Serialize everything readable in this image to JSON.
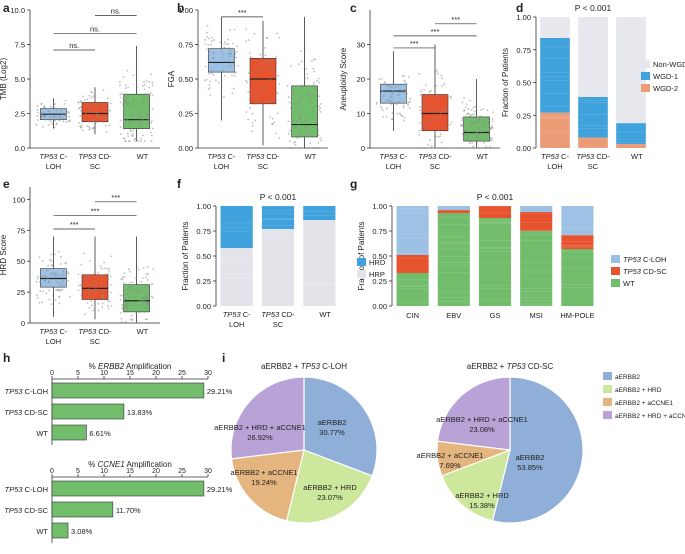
{
  "colors": {
    "c_loh": "#9cc1e4",
    "cd_sc": "#e8532f",
    "wt": "#72bd6c",
    "hrd": "#3fa2dc",
    "hrp": "#e3e4ea",
    "non_wgd": "#e6e8ee",
    "wgd1": "#3fa2dc",
    "wgd2": "#ec9b77",
    "pie_erbb2": "#8fafd8",
    "pie_hrd": "#cde79c",
    "pie_ccne1": "#e5b57f",
    "pie_hrd_ccne1": "#b9a2d6",
    "hbar": "#72bd6c",
    "jitter": "#888888"
  },
  "chart_data": [
    {
      "panel": "a",
      "type": "box",
      "ylabel": "TMB (Log2)",
      "ylim": [
        0,
        10
      ],
      "yticks": [
        "0.0",
        "2.5",
        "5.0",
        "7.5",
        "10.0"
      ],
      "categories": [
        [
          "TP53 C-",
          "LOH"
        ],
        [
          "TP53 CD-",
          "SC"
        ],
        [
          "WT",
          ""
        ]
      ],
      "boxes": [
        {
          "q1": 2.05,
          "med": 2.45,
          "q3": 2.85,
          "lo": 1.4,
          "hi": 3.6
        },
        {
          "q1": 1.9,
          "med": 2.5,
          "q3": 3.3,
          "lo": 1.0,
          "hi": 4.4
        },
        {
          "q1": 1.4,
          "med": 2.05,
          "q3": 3.9,
          "lo": 0.5,
          "hi": 7.4
        }
      ],
      "brackets": [
        {
          "from": 0,
          "to": 2,
          "label": "ns.",
          "y": 8.3
        },
        {
          "from": 1,
          "to": 2,
          "label": "ns.",
          "y": 9.6
        },
        {
          "from": 0,
          "to": 1,
          "label": "ns.",
          "y": 7.1
        }
      ]
    },
    {
      "panel": "b",
      "type": "box",
      "ylabel": "FGA",
      "ylim": [
        0,
        1
      ],
      "yticks": [
        "0.00",
        "0.25",
        "0.50",
        "0.75",
        "1.00"
      ],
      "categories": [
        [
          "TP53 C-",
          "LOH"
        ],
        [
          "TP53 CD-",
          "SC"
        ],
        [
          "WT",
          ""
        ]
      ],
      "boxes": [
        {
          "q1": 0.55,
          "med": 0.62,
          "q3": 0.72,
          "lo": 0.2,
          "hi": 0.95
        },
        {
          "q1": 0.32,
          "med": 0.5,
          "q3": 0.65,
          "lo": 0.02,
          "hi": 0.92
        },
        {
          "q1": 0.08,
          "med": 0.17,
          "q3": 0.45,
          "lo": 0.0,
          "hi": 0.95
        }
      ],
      "brackets": [
        {
          "from": 0,
          "to": 1,
          "label": "***",
          "y": 0.95
        },
        {
          "from": 0,
          "to": 2,
          "label": "***",
          "y": 1.08
        },
        {
          "from": 1,
          "to": 2,
          "label": "***",
          "y": 1.22
        }
      ]
    },
    {
      "panel": "c",
      "type": "box",
      "ylabel": "Aneuploidy Score",
      "ylim": [
        0,
        40
      ],
      "yticks": [
        "0",
        "10",
        "20",
        "30"
      ],
      "categories": [
        [
          "TP53 C-",
          "LOH"
        ],
        [
          "TP53 CD-",
          "SC"
        ],
        [
          "WT",
          ""
        ]
      ],
      "boxes": [
        {
          "q1": 13,
          "med": 16.5,
          "q3": 18.5,
          "lo": 5,
          "hi": 28
        },
        {
          "q1": 5,
          "med": 10,
          "q3": 15.5,
          "lo": 0,
          "hi": 30
        },
        {
          "q1": 2,
          "med": 4.5,
          "q3": 9,
          "lo": 0,
          "hi": 20
        }
      ],
      "brackets": [
        {
          "from": 0,
          "to": 1,
          "label": "***",
          "y": 29
        },
        {
          "from": 0,
          "to": 2,
          "label": "***",
          "y": 32.5
        },
        {
          "from": 1,
          "to": 2,
          "label": "***",
          "y": 36
        }
      ]
    },
    {
      "panel": "d",
      "type": "stacked_bar",
      "ylabel": "Fraction of Patients",
      "ylim": [
        0,
        1
      ],
      "yticks": [
        "0.00",
        "0.25",
        "0.50",
        "0.75",
        "1.00"
      ],
      "pvalue": "P < 0.001",
      "categories": [
        [
          "TP53 C-",
          "LOH"
        ],
        [
          "TP53 CD-",
          "SC"
        ],
        [
          "WT",
          ""
        ]
      ],
      "series": [
        {
          "name": "WGD-2",
          "values": [
            0.27,
            0.08,
            0.03
          ]
        },
        {
          "name": "WGD-1",
          "values": [
            0.57,
            0.31,
            0.16
          ]
        },
        {
          "name": "Non-WGD",
          "values": [
            0.16,
            0.61,
            0.81
          ]
        }
      ],
      "legend": [
        "Non-WGD",
        "WGD-1",
        "WGD-2"
      ]
    },
    {
      "panel": "e",
      "type": "box",
      "ylabel": "HRD Score",
      "ylim": [
        0,
        110
      ],
      "yticks": [
        "0",
        "25",
        "50",
        "75",
        "100"
      ],
      "categories": [
        [
          "TP53 C-",
          "LOH"
        ],
        [
          "TP53 CD-",
          "SC"
        ],
        [
          "WT",
          ""
        ]
      ],
      "boxes": [
        {
          "q1": 29,
          "med": 36,
          "q3": 44,
          "lo": 5,
          "hi": 70
        },
        {
          "q1": 19,
          "med": 28,
          "q3": 39,
          "lo": 3,
          "hi": 70
        },
        {
          "q1": 9,
          "med": 18,
          "q3": 31,
          "lo": 0,
          "hi": 70
        }
      ],
      "brackets": [
        {
          "from": 0,
          "to": 1,
          "label": "***",
          "y": 76
        },
        {
          "from": 0,
          "to": 2,
          "label": "***",
          "y": 87
        },
        {
          "from": 1,
          "to": 2,
          "label": "***",
          "y": 98
        }
      ]
    },
    {
      "panel": "f",
      "type": "stacked_bar",
      "ylabel": "Fraction of Patients",
      "ylim": [
        0,
        1
      ],
      "yticks": [
        "0.00",
        "0.25",
        "0.50",
        "0.75",
        "1.00"
      ],
      "pvalue": "P < 0.001",
      "categories": [
        [
          "TP53 C-",
          "LOH"
        ],
        [
          "TP53 CD-",
          "SC"
        ],
        [
          "WT",
          ""
        ]
      ],
      "series": [
        {
          "name": "HRP",
          "values": [
            0.58,
            0.77,
            0.86
          ]
        },
        {
          "name": "HRD",
          "values": [
            0.42,
            0.23,
            0.14
          ]
        }
      ],
      "legend": [
        "HRD",
        "HRP"
      ]
    },
    {
      "panel": "g",
      "type": "stacked_bar",
      "ylabel": "Fraction of Patients",
      "ylim": [
        0,
        1
      ],
      "yticks": [
        "0.00",
        "0.25",
        "0.50",
        "0.75",
        "1.00"
      ],
      "pvalue": "P < 0.001",
      "categories": [
        "CIN",
        "EBV",
        "GS",
        "MSI",
        "HM-POLE"
      ],
      "series": [
        {
          "name": "WT",
          "values": [
            0.33,
            0.93,
            0.88,
            0.75,
            0.57
          ]
        },
        {
          "name": "CD-SC",
          "values": [
            0.18,
            0.03,
            0.12,
            0.19,
            0.14
          ]
        },
        {
          "name": "C-LOH",
          "values": [
            0.49,
            0.04,
            0.0,
            0.06,
            0.29
          ]
        }
      ],
      "legend": [
        [
          "TP53",
          " C-LOH"
        ],
        [
          "TP53",
          " CD-SC"
        ],
        [
          "",
          "WT"
        ]
      ]
    },
    {
      "panel": "h",
      "type": "hbar",
      "title_prefix": "% ",
      "gene": "ERBB2",
      "title_suffix": " Amplification",
      "xlim": [
        0,
        30
      ],
      "xticks": [
        "0",
        "5",
        "10",
        "15",
        "20",
        "25",
        "30"
      ],
      "categories": [
        [
          "TP53",
          " C-LOH"
        ],
        [
          "TP53",
          " CD-SC"
        ],
        [
          "",
          "WT"
        ]
      ],
      "values": [
        29.21,
        13.83,
        6.61
      ],
      "labels": [
        "29.21%",
        "13.83%",
        "6.61%"
      ]
    },
    {
      "panel": "h2",
      "type": "hbar",
      "title_prefix": "% ",
      "gene": "CCNE1",
      "title_suffix": " Amplification",
      "xlim": [
        0,
        30
      ],
      "xticks": [
        "0",
        "5",
        "10",
        "15",
        "20",
        "25",
        "30"
      ],
      "categories": [
        [
          "TP53",
          " C-LOH"
        ],
        [
          "TP53",
          " CD-SC"
        ],
        [
          "",
          "WT"
        ]
      ],
      "values": [
        29.21,
        11.7,
        3.08
      ],
      "labels": [
        "29.21%",
        "11.70%",
        "3.08%"
      ]
    },
    {
      "panel": "i",
      "type": "pie",
      "title": "aERBB2 + TP53 C-LOH",
      "slices": [
        {
          "name": "aERBB2",
          "value": 30.77,
          "label": "30.77%"
        },
        {
          "name": "aERBB2 + HRD",
          "value": 23.07,
          "label": "23.07%"
        },
        {
          "name": "aERBB2 + aCCNE1",
          "value": 19.24,
          "label": "19.24%"
        },
        {
          "name": "aERBB2 + HRD + aCCNE1",
          "value": 26.92,
          "label": "26.92%"
        }
      ]
    },
    {
      "panel": "i2",
      "type": "pie",
      "title": "aERBB2 + TP53 CD-SC",
      "slices": [
        {
          "name": "aERBB2",
          "value": 53.85,
          "label": "53.85%"
        },
        {
          "name": "aERBB2 + HRD",
          "value": 15.38,
          "label": "15.38%"
        },
        {
          "name": "aERBB2 + aCCNE1",
          "value": 7.69,
          "label": "7.69%"
        },
        {
          "name": "aERBB2 + HRD + aCCNE1",
          "value": 23.08,
          "label": "23.08%"
        }
      ]
    }
  ],
  "panel_letters": [
    "a",
    "b",
    "c",
    "d",
    "e",
    "f",
    "g",
    "h",
    "i"
  ],
  "pie_legend": [
    "aERBB2",
    "aERBB2 + HRD",
    "aERBB2 + aCCNE1",
    "aERBB2 + HRD + aCCNE1"
  ]
}
